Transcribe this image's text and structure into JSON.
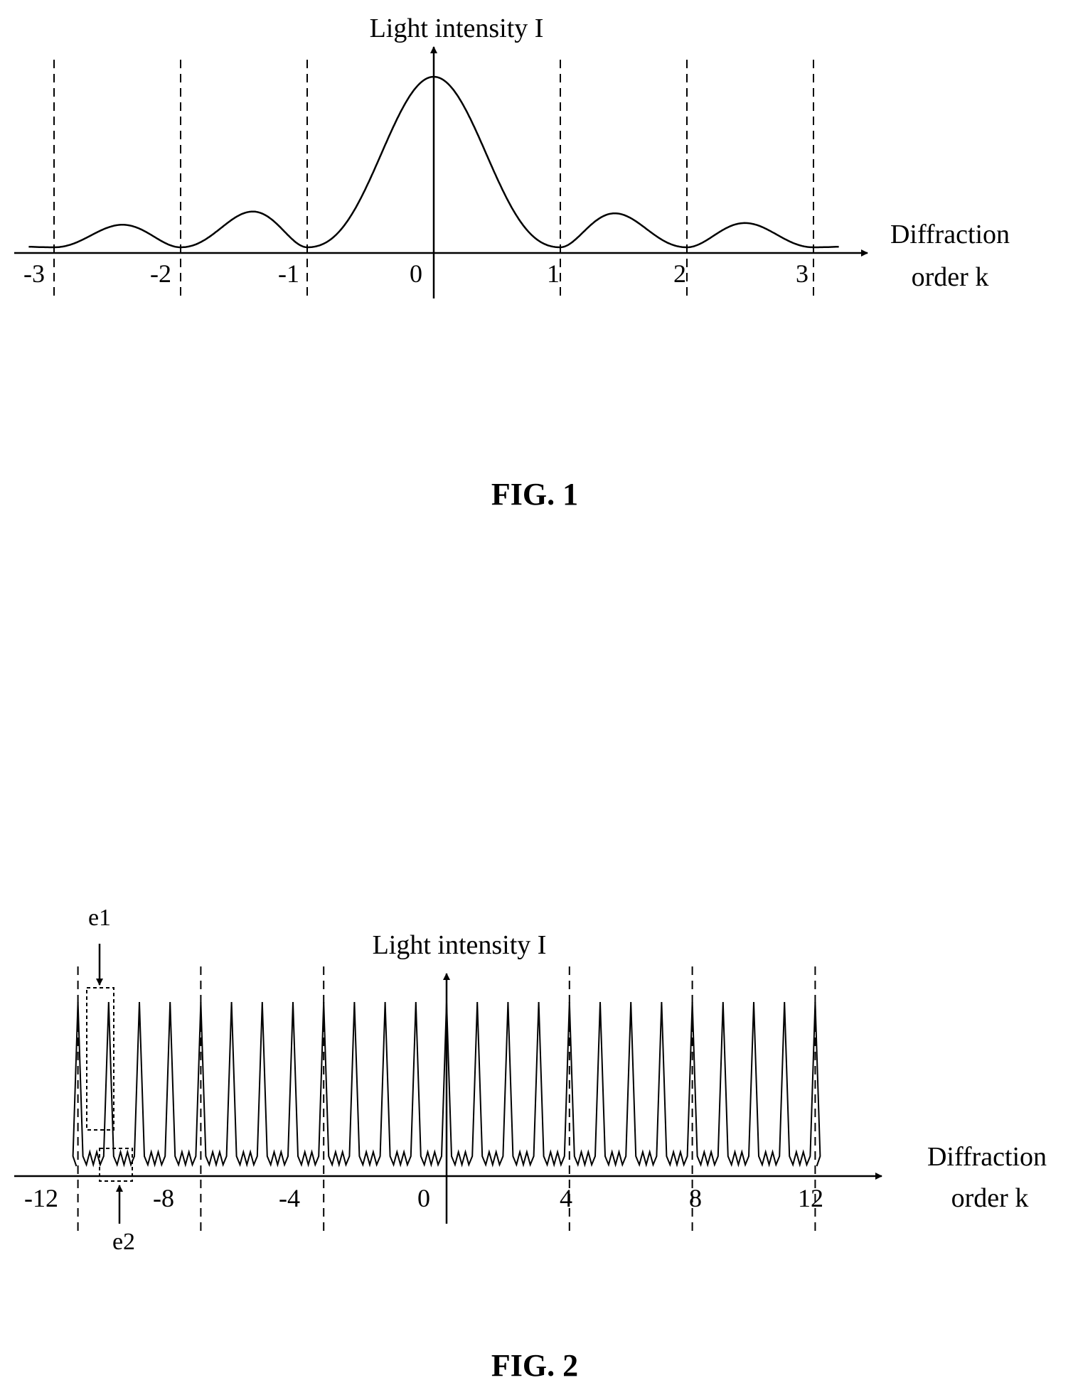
{
  "figures": [
    {
      "caption": "FIG. 1",
      "y_axis_label": "Light intensity I",
      "x_axis_label_lines": [
        "Diffraction",
        "order k"
      ],
      "tick_labels": [
        "-3",
        "-2",
        "-1",
        "0",
        "1",
        "2",
        "3"
      ]
    },
    {
      "caption": "FIG. 2",
      "y_axis_label": "Light intensity I",
      "x_axis_label_lines": [
        "Diffraction",
        "order k"
      ],
      "tick_labels": [
        "-12",
        "-8",
        "-4",
        "0",
        "4",
        "8",
        "12"
      ],
      "callouts": [
        "e1",
        "e2"
      ]
    }
  ],
  "chart_data": [
    {
      "type": "line",
      "title": "",
      "xlabel": "Diffraction order k",
      "ylabel": "Light intensity I",
      "xlim": [
        -3.2,
        3.2
      ],
      "x_ticks": [
        -3,
        -2,
        -1,
        0,
        1,
        2,
        3
      ],
      "minima_k": [
        -3,
        -2,
        -1,
        1,
        2,
        3
      ],
      "peaks": [
        {
          "k": -2.5,
          "I": 0.13
        },
        {
          "k": -1.5,
          "I": 0.2
        },
        {
          "k": 0,
          "I": 1.0
        },
        {
          "k": 1.5,
          "I": 0.19
        },
        {
          "k": 2.5,
          "I": 0.14
        }
      ],
      "grid": false,
      "legend": "none"
    },
    {
      "type": "line",
      "title": "",
      "xlabel": "Diffraction order k",
      "ylabel": "Light intensity I",
      "xlim": [
        -12.8,
        12.8
      ],
      "x_ticks": [
        -12,
        -8,
        -4,
        0,
        4,
        8,
        12
      ],
      "dashed_lines_k": [
        -12,
        -8,
        -4,
        4,
        8,
        12
      ],
      "main_peaks_k": [
        -12,
        -11,
        -10,
        -9,
        -8,
        -7,
        -6,
        -5,
        -4,
        -3,
        -2,
        -1,
        0,
        1,
        2,
        3,
        4,
        5,
        6,
        7,
        8,
        9,
        10,
        11,
        12
      ],
      "main_peak_intensity": 1.0,
      "noise_floor_intensity": 0.1,
      "annotations": [
        {
          "label": "e1",
          "region": "main peak at k=-11"
        },
        {
          "label": "e2",
          "region": "low-level ripple between k=-11 and k=-10"
        }
      ],
      "grid": false,
      "legend": "none"
    }
  ]
}
